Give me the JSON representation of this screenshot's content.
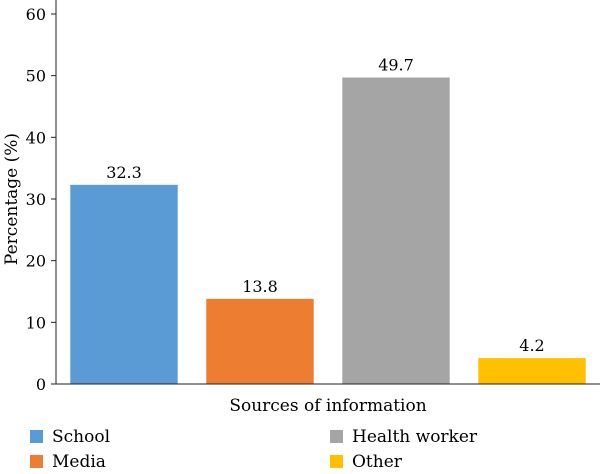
{
  "chart_data": {
    "type": "bar",
    "title": "",
    "xlabel": "Sources of information",
    "ylabel": "Percentage (%)",
    "categories": [
      "School",
      "Media",
      "Health worker",
      "Other"
    ],
    "values": [
      32.3,
      13.8,
      49.7,
      4.2
    ],
    "value_labels": [
      "32.3",
      "13.8",
      "49.7",
      "4.2"
    ],
    "colors": [
      "#5B9BD5",
      "#ED7D31",
      "#A5A5A5",
      "#FFC000"
    ],
    "ylim": [
      0,
      60
    ],
    "yticks": [
      0,
      10,
      20,
      30,
      40,
      50,
      60
    ],
    "ytick_labels": [
      "0",
      "10",
      "20",
      "30",
      "40",
      "50",
      "60"
    ],
    "grid": false,
    "legend": {
      "placement": "bottom",
      "entries": [
        "School",
        "Media",
        "Health worker",
        "Other"
      ]
    }
  }
}
